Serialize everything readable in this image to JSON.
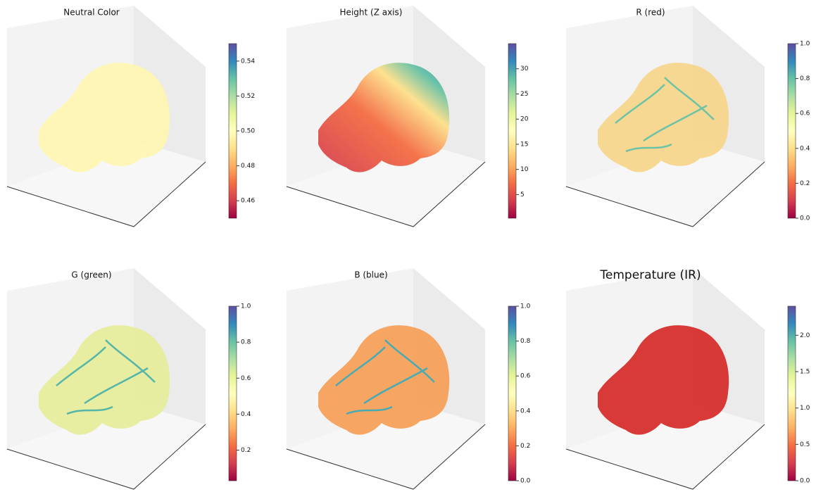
{
  "chart_data": [
    {
      "type": "scatter3d",
      "title": "Neutral Color",
      "colormap": "Spectral",
      "ylim": [
        0.45,
        0.55
      ],
      "yticks": [
        {
          "value": 0.46,
          "label": "0.46"
        },
        {
          "value": 0.48,
          "label": "0.48"
        },
        {
          "value": 0.5,
          "label": "0.50"
        },
        {
          "value": 0.52,
          "label": "0.52"
        },
        {
          "value": 0.54,
          "label": "0.54"
        }
      ]
    },
    {
      "type": "scatter3d",
      "title": "Height (Z axis)",
      "colormap": "Spectral",
      "ylim": [
        0.3,
        35
      ],
      "yticks": [
        5,
        10,
        15,
        20,
        25,
        30
      ]
    },
    {
      "type": "scatter3d",
      "title": "R (red)",
      "colormap": "Spectral",
      "ylim": [
        0,
        1
      ],
      "yticks": [
        {
          "value": 0,
          "label": "0.0"
        },
        0.2,
        0.4,
        0.6,
        0.8,
        {
          "value": 1,
          "label": "1.0"
        }
      ]
    },
    {
      "type": "scatter3d",
      "title": "G (green)",
      "colormap": "Spectral",
      "ylim": [
        0.03,
        1
      ],
      "yticks": [
        0.2,
        0.4,
        0.6,
        0.8,
        {
          "value": 1,
          "label": "1.0"
        }
      ]
    },
    {
      "type": "scatter3d",
      "title": "B (blue)",
      "colormap": "Spectral",
      "ylim": [
        0,
        1
      ],
      "yticks": [
        {
          "value": 0,
          "label": "0.0"
        },
        0.2,
        0.4,
        0.6,
        0.8,
        {
          "value": 1,
          "label": "1.0"
        }
      ]
    },
    {
      "type": "scatter3d",
      "title": "Temperature (IR)",
      "colormap": "Spectral",
      "ylim": [
        0,
        2.4
      ],
      "yticks": [
        {
          "value": 0,
          "label": "0.0"
        },
        0.5,
        {
          "value": 1,
          "label": "1.0"
        },
        1.5,
        {
          "value": 2,
          "label": "2.0"
        }
      ]
    }
  ]
}
